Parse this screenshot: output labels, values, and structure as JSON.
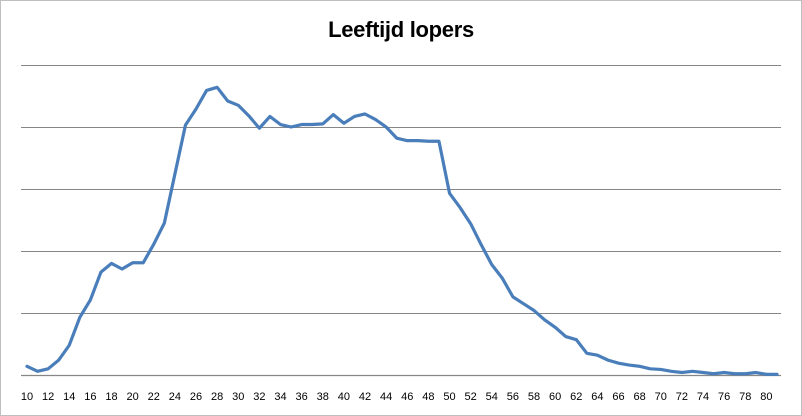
{
  "chart_data": {
    "type": "line",
    "title": "Leeftijd lopers",
    "xlabel": "",
    "ylabel": "",
    "x": [
      10,
      11,
      12,
      13,
      14,
      15,
      16,
      17,
      18,
      19,
      20,
      21,
      22,
      23,
      24,
      25,
      26,
      27,
      28,
      29,
      30,
      31,
      32,
      33,
      34,
      35,
      36,
      37,
      38,
      39,
      40,
      41,
      42,
      43,
      44,
      45,
      46,
      47,
      48,
      49,
      50,
      51,
      52,
      53,
      54,
      55,
      56,
      57,
      58,
      59,
      60,
      61,
      62,
      63,
      64,
      65,
      66,
      67,
      68,
      69,
      70,
      71,
      72,
      73,
      74,
      75,
      76,
      77,
      78,
      79,
      80,
      81
    ],
    "x_tick_labels": [
      "10",
      "12",
      "14",
      "16",
      "18",
      "20",
      "22",
      "24",
      "26",
      "28",
      "30",
      "32",
      "34",
      "36",
      "38",
      "40",
      "42",
      "44",
      "46",
      "48",
      "50",
      "52",
      "54",
      "56",
      "58",
      "60",
      "62",
      "64",
      "66",
      "68",
      "70",
      "72",
      "74",
      "76",
      "78",
      "80"
    ],
    "series": [
      {
        "color": "#4a7ebb",
        "values": [
          0.14,
          0.06,
          0.1,
          0.24,
          0.48,
          0.93,
          1.21,
          1.66,
          1.8,
          1.71,
          1.81,
          1.81,
          2.11,
          2.45,
          3.24,
          4.03,
          4.29,
          4.59,
          4.64,
          4.42,
          4.35,
          4.18,
          3.98,
          4.17,
          4.04,
          4.0,
          4.04,
          4.04,
          4.05,
          4.2,
          4.06,
          4.17,
          4.21,
          4.12,
          4.0,
          3.82,
          3.78,
          3.78,
          3.77,
          3.77,
          2.93,
          2.7,
          2.44,
          2.1,
          1.78,
          1.56,
          1.26,
          1.15,
          1.04,
          0.89,
          0.77,
          0.62,
          0.57,
          0.35,
          0.32,
          0.24,
          0.19,
          0.16,
          0.14,
          0.1,
          0.09,
          0.06,
          0.04,
          0.06,
          0.04,
          0.02,
          0.04,
          0.02,
          0.02,
          0.04,
          0.01,
          0.01
        ]
      }
    ],
    "ylim": [
      0,
      5
    ],
    "y_gridlines": [
      0,
      1,
      2,
      3,
      4,
      5
    ],
    "y_tick_labels": [],
    "grid": true,
    "legend": "none",
    "axis_color": "#868686",
    "gridline_color": "#868686"
  }
}
